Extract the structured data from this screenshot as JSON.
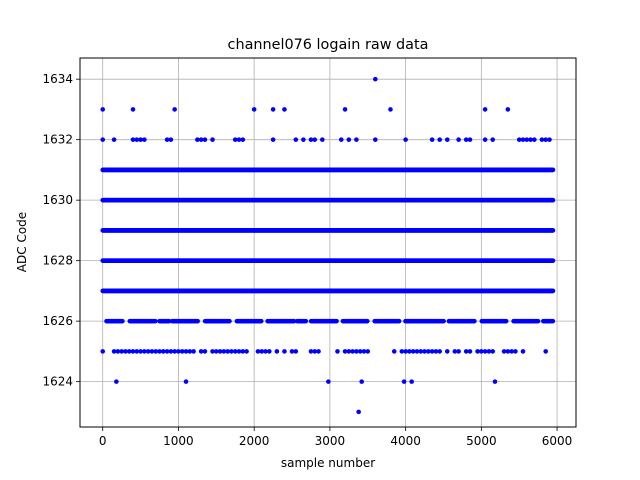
{
  "chart_data": {
    "type": "scatter",
    "title": "channel076 logain raw data",
    "xlabel": "sample number",
    "ylabel": "ADC Code",
    "xlim": [
      -300,
      6250
    ],
    "ylim": [
      1622.5,
      1634.7
    ],
    "xticks": [
      0,
      1000,
      2000,
      3000,
      4000,
      5000,
      6000
    ],
    "yticks": [
      1624,
      1626,
      1628,
      1630,
      1632,
      1634
    ],
    "grid": true,
    "marker_color": "#0000ff",
    "marker": "circle",
    "n_samples": 6000,
    "series": [
      {
        "dense_levels": [
          1627,
          1628,
          1629,
          1630,
          1631
        ],
        "medium_levels": [
          1626
        ],
        "sparse_levels": [
          {
            "y": 1625,
            "x": [
              0,
              150,
              200,
              250,
              300,
              350,
              400,
              450,
              500,
              550,
              600,
              650,
              700,
              750,
              800,
              850,
              900,
              950,
              1000,
              1050,
              1100,
              1150,
              1200,
              1300,
              1350,
              1450,
              1500,
              1550,
              1600,
              1650,
              1700,
              1750,
              1800,
              1850,
              1900,
              2050,
              2100,
              2150,
              2200,
              2300,
              2400,
              2500,
              2550,
              2750,
              2800,
              2850,
              3100,
              3200,
              3250,
              3300,
              3350,
              3400,
              3450,
              3500,
              3850,
              3950,
              4000,
              4050,
              4100,
              4150,
              4200,
              4250,
              4300,
              4350,
              4400,
              4450,
              4550,
              4650,
              4700,
              4800,
              4850,
              4950,
              5000,
              5050,
              5100,
              5150,
              5300,
              5350,
              5400,
              5450,
              5550,
              5850
            ]
          },
          {
            "y": 1632,
            "x": [
              0,
              150,
              400,
              450,
              500,
              550,
              850,
              900,
              1250,
              1300,
              1350,
              1450,
              1750,
              1800,
              1850,
              2250,
              2550,
              2650,
              2750,
              2800,
              2900,
              3150,
              3250,
              3350,
              3600,
              4000,
              4350,
              4450,
              4550,
              4700,
              4800,
              4850,
              5050,
              5150,
              5500,
              5550,
              5600,
              5650,
              5700,
              5800,
              5850,
              5900
            ]
          },
          {
            "y": 1633,
            "x": [
              0,
              400,
              950,
              2000,
              2250,
              2400,
              3200,
              3800,
              5050,
              5350
            ]
          },
          {
            "y": 1634,
            "x": [
              3600
            ]
          },
          {
            "y": 1624,
            "x": [
              180,
              1100,
              2980,
              3420,
              3980,
              4080,
              5180
            ]
          },
          {
            "y": 1623,
            "x": [
              3380
            ]
          }
        ]
      }
    ]
  }
}
